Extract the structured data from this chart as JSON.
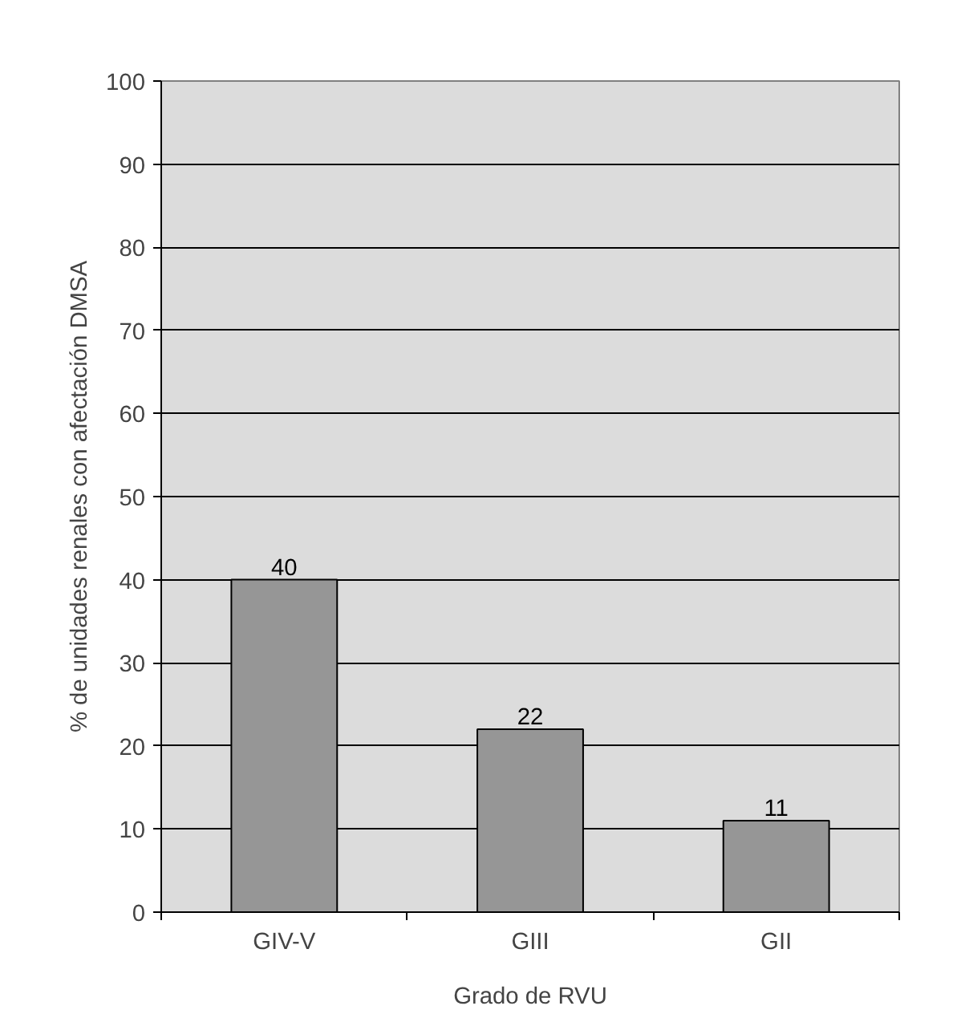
{
  "chart_data": {
    "type": "bar",
    "xlabel": "Grado de RVU",
    "ylabel": "% de unidades renales con afectación DMSA",
    "categories": [
      "GIV-V",
      "GIII",
      "GII"
    ],
    "values": [
      40,
      22,
      11
    ],
    "color": "#969696",
    "ylim": [
      0,
      100
    ],
    "yticks": [
      0,
      10,
      20,
      30,
      40,
      50,
      60,
      70,
      80,
      90,
      100
    ],
    "grid": "y",
    "data_labels": true
  }
}
